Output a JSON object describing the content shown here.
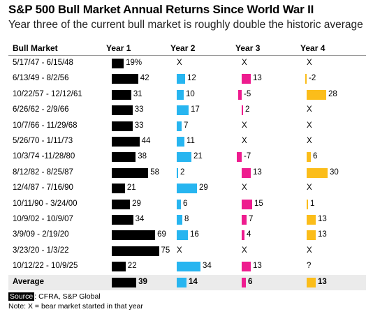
{
  "title": "S&P 500 Bull Market Annual Returns Since World War II",
  "subtitle": "Year three of the current bull market is roughly double the historic average",
  "headers": {
    "bull_market": "Bull Market",
    "year1": "Year 1",
    "year2": "Year 2",
    "year3": "Year 3",
    "year4": "Year 4"
  },
  "footer": {
    "source_label": "Source",
    "source_text": ": CFRA, S&P Global",
    "note": "Note: X = bear market started in that year"
  },
  "colors": {
    "year1": "#000000",
    "year2": "#27b5f0",
    "year3": "#ee1c8f",
    "year4": "#fbbd1a",
    "average_row_bg": "#ebebeb"
  },
  "chart_data": {
    "type": "bar",
    "layout": "small-multiples table",
    "series": [
      {
        "name": "Year 1",
        "color": "#000000"
      },
      {
        "name": "Year 2",
        "color": "#27b5f0"
      },
      {
        "name": "Year 3",
        "color": "#ee1c8f"
      },
      {
        "name": "Year 4",
        "color": "#fbbd1a"
      }
    ],
    "rows": [
      {
        "label": "5/17/47 - 6/15/48",
        "values": [
          19,
          null,
          null,
          null
        ],
        "marks": [
          null,
          "X",
          "X",
          "X"
        ],
        "y1_display": "19%"
      },
      {
        "label": "6/13/49 - 8/2/56",
        "values": [
          42,
          12,
          13,
          -2
        ],
        "marks": [
          null,
          null,
          null,
          null
        ]
      },
      {
        "label": "10/22/57 - 12/12/61",
        "values": [
          31,
          10,
          -5,
          28
        ],
        "marks": [
          null,
          null,
          null,
          null
        ]
      },
      {
        "label": "6/26/62 - 2/9/66",
        "values": [
          33,
          17,
          2,
          null
        ],
        "marks": [
          null,
          null,
          null,
          "X"
        ]
      },
      {
        "label": "10/7/66 - 11/29/68",
        "values": [
          33,
          7,
          null,
          null
        ],
        "marks": [
          null,
          null,
          "X",
          "X"
        ]
      },
      {
        "label": "5/26/70 - 1/11/73",
        "values": [
          44,
          11,
          null,
          null
        ],
        "marks": [
          null,
          null,
          "X",
          "X"
        ]
      },
      {
        "label": "10/3/74 -11/28/80",
        "values": [
          38,
          21,
          -7,
          6
        ],
        "marks": [
          null,
          null,
          null,
          null
        ]
      },
      {
        "label": "8/12/82 - 8/25/87",
        "values": [
          58,
          2,
          13,
          30
        ],
        "marks": [
          null,
          null,
          null,
          null
        ]
      },
      {
        "label": "12/4/87 - 7/16/90",
        "values": [
          21,
          29,
          null,
          null
        ],
        "marks": [
          null,
          null,
          "X",
          "X"
        ]
      },
      {
        "label": "10/11/90 - 3/24/00",
        "values": [
          29,
          6,
          15,
          1
        ],
        "marks": [
          null,
          null,
          null,
          null
        ]
      },
      {
        "label": "10/9/02 - 10/9/07",
        "values": [
          34,
          8,
          7,
          13
        ],
        "marks": [
          null,
          null,
          null,
          null
        ]
      },
      {
        "label": "3/9/09 - 2/19/20",
        "values": [
          69,
          16,
          4,
          13
        ],
        "marks": [
          null,
          null,
          null,
          null
        ]
      },
      {
        "label": "3/23/20 - 1/3/22",
        "values": [
          75,
          null,
          null,
          null
        ],
        "marks": [
          null,
          "X",
          "X",
          "X"
        ]
      },
      {
        "label": "10/12/22 - 10/9/25",
        "values": [
          22,
          34,
          13,
          null
        ],
        "marks": [
          null,
          null,
          null,
          "?"
        ]
      }
    ],
    "average": {
      "label": "Average",
      "values": [
        39,
        14,
        6,
        13
      ]
    }
  }
}
